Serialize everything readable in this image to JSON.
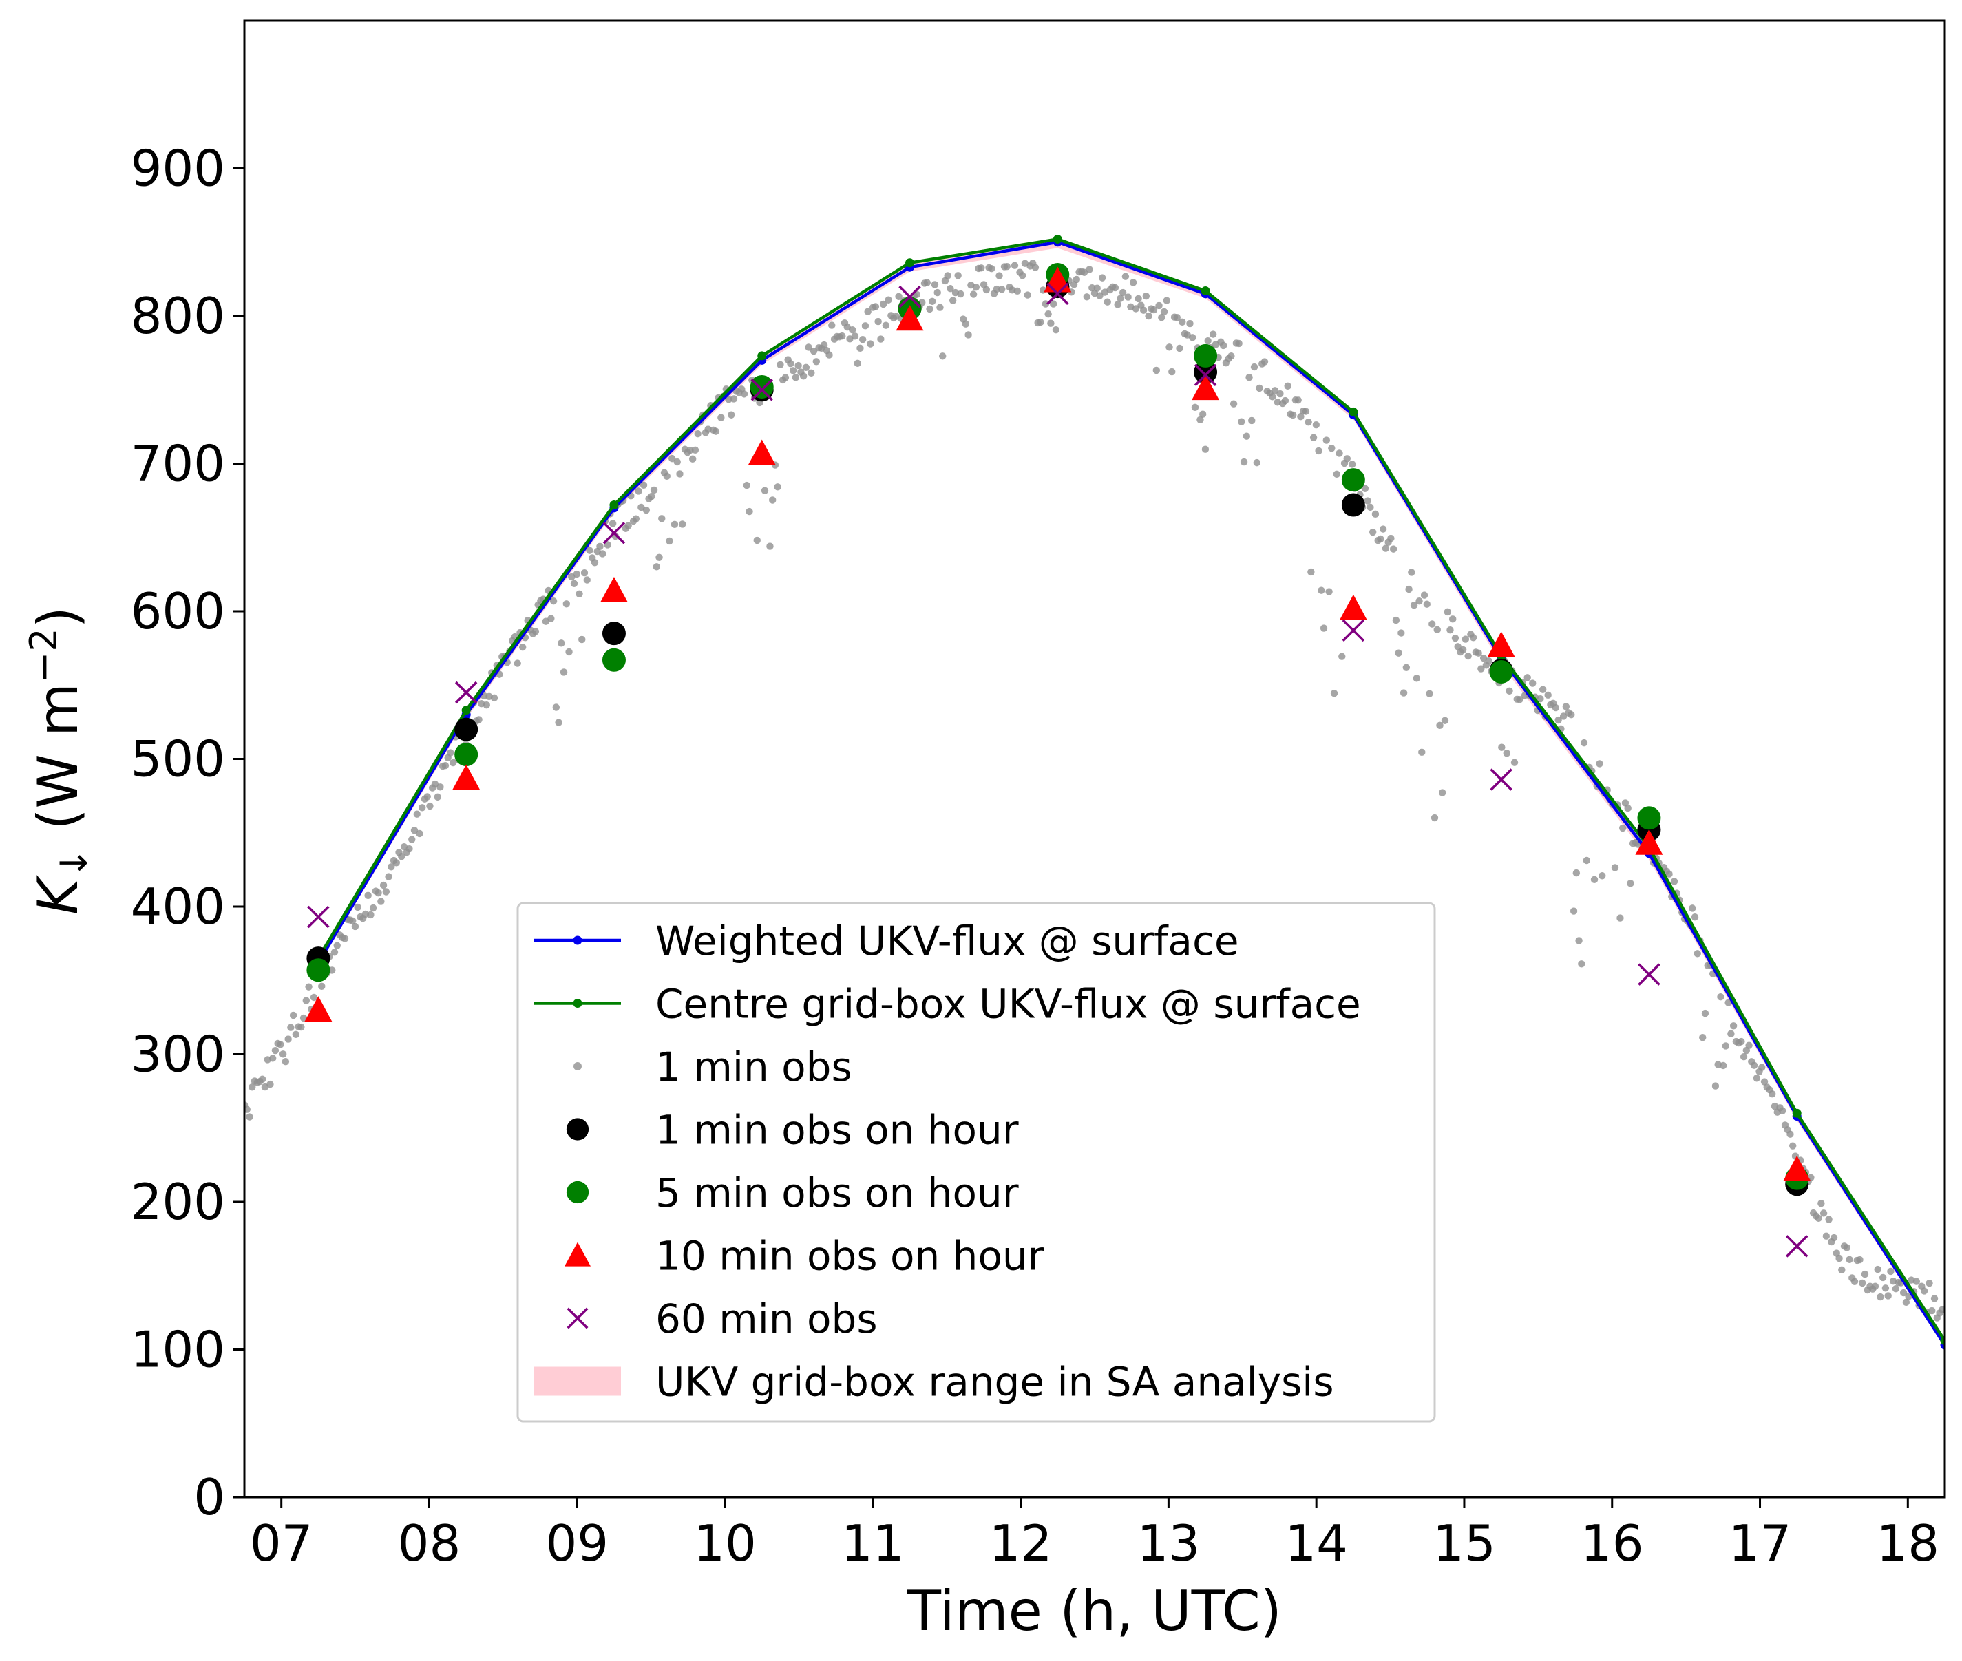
{
  "chart_data": {
    "type": "scatter",
    "title": "",
    "xlabel": "Time (h, UTC)",
    "ylabel": "K↓ (W m⁻²)",
    "ylabel_parts": {
      "symbol": "K",
      "subscript": "↓",
      "units_prefix": " (W m",
      "superscript": "−2",
      "units_suffix": ")"
    },
    "xlim": [
      6.75,
      18.25
    ],
    "ylim": [
      0,
      1000
    ],
    "x_ticks": [
      7,
      8,
      9,
      10,
      11,
      12,
      13,
      14,
      15,
      16,
      17,
      18
    ],
    "x_tick_labels": [
      "07",
      "08",
      "09",
      "10",
      "11",
      "12",
      "13",
      "14",
      "15",
      "16",
      "17",
      "18"
    ],
    "y_ticks": [
      0,
      100,
      200,
      300,
      400,
      500,
      600,
      700,
      800,
      900
    ],
    "y_tick_labels": [
      "0",
      "100",
      "200",
      "300",
      "400",
      "500",
      "600",
      "700",
      "800",
      "900"
    ],
    "grid": false,
    "legend_position": "lower-center",
    "series": [
      {
        "name": "Weighted UKV-flux @ surface",
        "kind": "line",
        "color": "#0000ee",
        "x": [
          7.25,
          8.25,
          9.25,
          10.25,
          11.25,
          12.25,
          13.25,
          14.25,
          15.25,
          16.25,
          17.25,
          18.25
        ],
        "y": [
          362,
          530,
          670,
          770,
          833,
          850,
          815,
          733,
          568,
          436,
          258,
          103
        ]
      },
      {
        "name": "Centre grid-box UKV-flux @ surface",
        "kind": "line",
        "color": "#008000",
        "x": [
          7.25,
          8.25,
          9.25,
          10.25,
          11.25,
          12.25,
          13.25,
          14.25,
          15.25,
          16.25,
          17.25,
          18.25
        ],
        "y": [
          365,
          533,
          672,
          773,
          836,
          852,
          817,
          735,
          570,
          440,
          260,
          106
        ]
      },
      {
        "name": "1 min obs",
        "kind": "small-dots",
        "color": "#909090",
        "anchors_x": [
          6.75,
          7.0,
          7.25,
          7.5,
          7.75,
          8.0,
          8.25,
          8.5,
          8.75,
          9.0,
          9.25,
          9.5,
          9.75,
          10.0,
          10.25,
          10.5,
          10.75,
          11.0,
          11.25,
          11.5,
          11.75,
          12.0,
          12.25,
          12.5,
          12.75,
          13.0,
          13.25,
          13.5,
          13.75,
          14.0,
          14.25,
          14.5,
          14.75,
          15.0,
          15.25,
          15.5,
          15.75,
          16.0,
          16.25,
          16.5,
          16.75,
          17.0,
          17.25,
          17.5,
          17.75,
          18.0,
          18.25
        ],
        "anchors_y": [
          262,
          300,
          350,
          390,
          425,
          470,
          520,
          560,
          600,
          620,
          660,
          680,
          710,
          740,
          750,
          765,
          785,
          800,
          810,
          818,
          822,
          825,
          826,
          822,
          815,
          805,
          785,
          770,
          750,
          720,
          690,
          640,
          600,
          580,
          560,
          540,
          520,
          470,
          440,
          400,
          330,
          290,
          230,
          170,
          145,
          140,
          130
        ],
        "dips": [
          [
            8.9,
            70
          ],
          [
            9.0,
            80
          ],
          [
            9.6,
            60
          ],
          [
            10.2,
            80
          ],
          [
            10.3,
            120
          ],
          [
            11.0,
            30
          ],
          [
            11.6,
            40
          ],
          [
            12.2,
            30
          ],
          [
            13.0,
            60
          ],
          [
            13.2,
            80
          ],
          [
            13.5,
            60
          ],
          [
            14.0,
            130
          ],
          [
            14.1,
            180
          ],
          [
            14.6,
            100
          ],
          [
            14.8,
            160
          ],
          [
            15.3,
            80
          ],
          [
            15.8,
            150
          ],
          [
            16.0,
            80
          ],
          [
            16.7,
            60
          ]
        ],
        "count": 660
      },
      {
        "name": "1 min obs on hour",
        "kind": "marker-circle",
        "color": "#000000",
        "x": [
          7.25,
          8.25,
          9.25,
          10.25,
          11.25,
          12.25,
          13.25,
          14.25,
          15.25,
          16.25,
          17.25
        ],
        "y": [
          365,
          520,
          585,
          750,
          805,
          820,
          762,
          672,
          560,
          452,
          212
        ]
      },
      {
        "name": "5 min obs on hour",
        "kind": "marker-circle",
        "color": "#008000",
        "x": [
          7.25,
          8.25,
          9.25,
          10.25,
          11.25,
          12.25,
          13.25,
          14.25,
          15.25,
          16.25,
          17.25
        ],
        "y": [
          357,
          503,
          567,
          752,
          805,
          828,
          773,
          689,
          559,
          460,
          216
        ]
      },
      {
        "name": "10 min obs on hour",
        "kind": "marker-triangle",
        "color": "#ff0000",
        "x": [
          7.25,
          8.25,
          9.25,
          10.25,
          11.25,
          12.25,
          13.25,
          14.25,
          15.25,
          16.25,
          17.25
        ],
        "y": [
          330,
          487,
          614,
          707,
          798,
          824,
          751,
          602,
          577,
          443,
          222
        ]
      },
      {
        "name": "60 min obs",
        "kind": "marker-x",
        "color": "#800080",
        "x": [
          7.25,
          8.25,
          9.25,
          10.25,
          11.25,
          12.25,
          13.25,
          14.25,
          15.25,
          16.25,
          17.25
        ],
        "y": [
          393,
          545,
          653,
          750,
          813,
          815,
          760,
          587,
          486,
          354,
          170
        ]
      },
      {
        "name": "UKV grid-box range in SA analysis",
        "kind": "band",
        "color": "#ffc0cb",
        "x": [
          7.25,
          8.25,
          9.25,
          10.25,
          11.25,
          12.25,
          13.25,
          14.25,
          15.25,
          16.25,
          17.25,
          18.25
        ],
        "y_low": [
          360,
          527,
          667,
          767,
          830,
          846,
          812,
          730,
          564,
          432,
          255,
          101
        ],
        "y_high": [
          366,
          534,
          673,
          774,
          837,
          853,
          818,
          736,
          571,
          441,
          261,
          107
        ]
      }
    ]
  }
}
